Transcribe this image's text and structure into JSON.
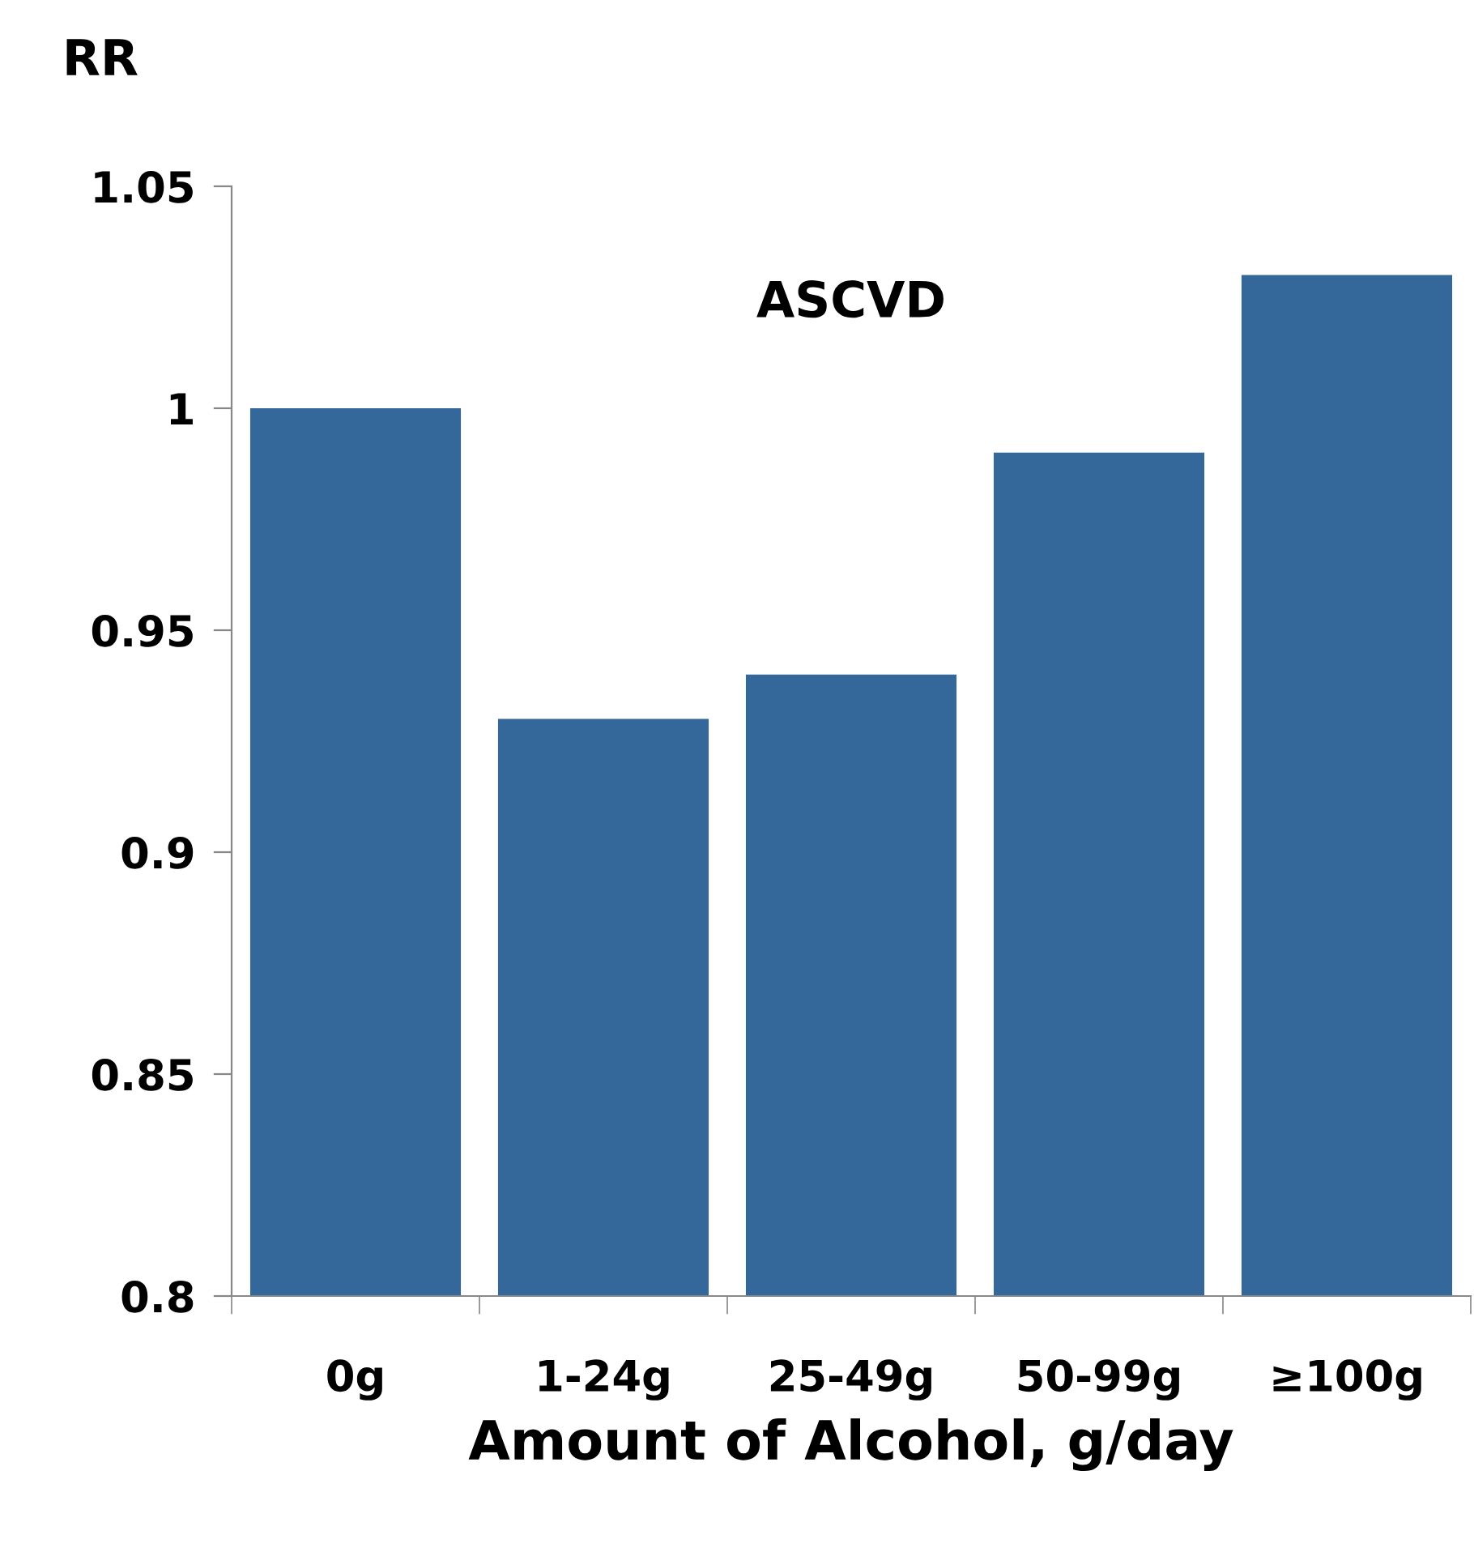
{
  "chart_data": {
    "type": "bar",
    "title": "ASCVD",
    "ylabel": "RR",
    "xlabel": "Amount of Alcohol, g/day",
    "categories": [
      "0g",
      "1-24g",
      "25-49g",
      "50-99g",
      "≥100g"
    ],
    "values": [
      1.0,
      0.93,
      0.94,
      0.99,
      1.03
    ],
    "color": "#34679a",
    "ylim": [
      0.8,
      1.05
    ],
    "yticks": [
      0.8,
      0.85,
      0.9,
      0.95,
      1,
      1.05
    ],
    "grid": false
  }
}
